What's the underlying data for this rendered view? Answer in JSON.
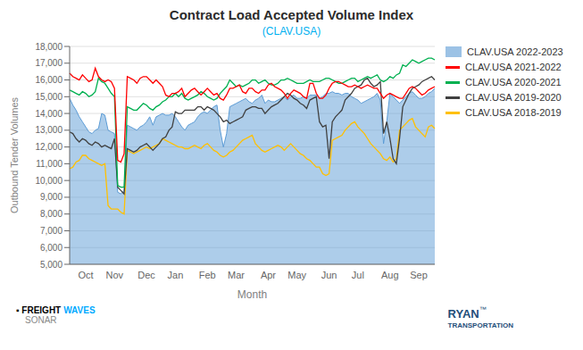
{
  "chart_data": {
    "type": "line",
    "title": "Contract Load Accepted Volume Index",
    "subtitle": "(CLAV.USA)",
    "xlabel": "Month",
    "ylabel": "Outbound Tender Volumes",
    "ylim": [
      5000,
      18000
    ],
    "yticks": [
      {
        "value": 5000,
        "label": "5,000"
      },
      {
        "value": 6000,
        "label": "6,000"
      },
      {
        "value": 7000,
        "label": "7,000"
      },
      {
        "value": 8000,
        "label": "8,000"
      },
      {
        "value": 9000,
        "label": "9,000"
      },
      {
        "value": 10000,
        "label": "10,000"
      },
      {
        "value": 11000,
        "label": "11,000"
      },
      {
        "value": 12000,
        "label": "12,000"
      },
      {
        "value": 13000,
        "label": "13,000"
      },
      {
        "value": 14000,
        "label": "14,000"
      },
      {
        "value": 15000,
        "label": "15,000"
      },
      {
        "value": 16000,
        "label": "16,000"
      },
      {
        "value": 17000,
        "label": "17,000"
      },
      {
        "value": 18000,
        "label": "18,000"
      }
    ],
    "grid": true,
    "legend": "right",
    "annotations": [
      "▪ FREIGHT",
      "WAVES",
      "SONAR",
      "RYAN",
      "™",
      "TRANSPORTATION"
    ],
    "categories": [
      null,
      null,
      null,
      null,
      null,
      "Oct",
      null,
      null,
      null,
      null,
      null,
      null,
      null,
      null,
      "Nov",
      null,
      null,
      null,
      null,
      null,
      null,
      null,
      null,
      null,
      "Dec",
      null,
      null,
      null,
      null,
      null,
      null,
      null,
      null,
      "Jan",
      null,
      null,
      null,
      null,
      null,
      null,
      null,
      null,
      null,
      "Feb",
      null,
      null,
      null,
      null,
      null,
      null,
      null,
      null,
      "Mar",
      null,
      null,
      null,
      null,
      null,
      null,
      null,
      null,
      null,
      "Apr",
      null,
      null,
      null,
      null,
      null,
      null,
      null,
      null,
      "May",
      null,
      null,
      null,
      null,
      null,
      null,
      null,
      null,
      null,
      "Jun",
      null,
      null,
      null,
      null,
      null,
      null,
      null,
      null,
      "Jul",
      null,
      null,
      null,
      null,
      null,
      null,
      null,
      null,
      null,
      "Aug",
      null,
      null,
      null,
      null,
      null,
      null,
      null,
      null,
      "Sep",
      null,
      null,
      null,
      null,
      null
    ],
    "series": [
      {
        "name": "CLAV.USA 2022-2023",
        "type": "area",
        "color": "#5b9bd5",
        "values": [
          14900,
          14500,
          14200,
          13800,
          13500,
          13200,
          12900,
          12800,
          13000,
          13100,
          14000,
          13900,
          13000,
          12900,
          12800,
          9300,
          9200,
          9400,
          13300,
          13200,
          13100,
          13000,
          13200,
          13300,
          13500,
          13800,
          13300,
          13800,
          13900,
          14000,
          13900,
          13900,
          14000,
          13800,
          13500,
          13200,
          13000,
          13300,
          13400,
          13500,
          13800,
          14000,
          14100,
          14000,
          14200,
          14400,
          14500,
          13000,
          12000,
          12800,
          14400,
          14500,
          14600,
          14700,
          14800,
          14900,
          14700,
          14600,
          14800,
          14900,
          15100,
          14600,
          14800,
          14700,
          14700,
          14800,
          14900,
          15000,
          14800,
          15000,
          15100,
          14900,
          14900,
          15000,
          14900,
          15100,
          15100,
          15100,
          14900,
          15000,
          15200,
          15200,
          15300,
          15200,
          15200,
          15100,
          15200,
          15200,
          15000,
          14900,
          14800,
          14600,
          14700,
          14800,
          14900,
          15000,
          15200,
          14800,
          12200,
          13500,
          15200,
          15000,
          14800,
          14600,
          14800,
          15000,
          15200,
          15300,
          15100,
          14900,
          14900,
          15000,
          15200,
          15300,
          15500
        ]
      },
      {
        "name": "CLAV.USA 2021-2022",
        "type": "line",
        "color": "#ff0000",
        "values": [
          16400,
          16200,
          16100,
          16000,
          16300,
          16100,
          15900,
          16000,
          16700,
          16200,
          16000,
          15900,
          16000,
          15900,
          15500,
          11200,
          11100,
          11600,
          16200,
          16100,
          16000,
          15800,
          16100,
          16200,
          16200,
          16000,
          15800,
          16000,
          15800,
          15600,
          15100,
          15000,
          15200,
          15200,
          15300,
          15500,
          15000,
          15200,
          15400,
          15500,
          15300,
          15100,
          15300,
          15500,
          15300,
          15100,
          15200,
          14900,
          14800,
          15100,
          15500,
          15500,
          15600,
          15700,
          15300,
          15200,
          15500,
          15500,
          15300,
          15200,
          15400,
          15400,
          15700,
          15800,
          15600,
          15500,
          15400,
          15200,
          14900,
          15200,
          15400,
          15300,
          15200,
          15000,
          14900,
          15800,
          15800,
          15200,
          14900,
          14900,
          15100,
          15500,
          15800,
          15900,
          15900,
          15800,
          15700,
          15600,
          15600,
          15700,
          15600,
          15500,
          15600,
          15700,
          15600,
          15500,
          15500,
          15200,
          14900,
          15100,
          15200,
          15100,
          15000,
          14900,
          14900,
          15200,
          15500,
          15600,
          15500,
          15300,
          15100,
          15200,
          15400,
          15500,
          15600
        ]
      },
      {
        "name": "CLAV.USA 2020-2021",
        "type": "line",
        "color": "#00b050",
        "values": [
          15400,
          15300,
          15200,
          15100,
          15300,
          15200,
          15000,
          15100,
          15300,
          16100,
          15900,
          15800,
          15500,
          15200,
          15000,
          9700,
          9600,
          9600,
          14400,
          14300,
          14200,
          14200,
          14400,
          14600,
          14500,
          14300,
          14200,
          14400,
          14500,
          14700,
          14800,
          15000,
          15000,
          15200,
          15000,
          15200,
          14900,
          14800,
          14900,
          15000,
          15100,
          15300,
          15200,
          15000,
          14900,
          14800,
          14900,
          15200,
          15400,
          15600,
          16000,
          15800,
          15600,
          15700,
          15600,
          15700,
          15800,
          16000,
          16000,
          15800,
          15900,
          16000,
          15800,
          15700,
          15700,
          15800,
          16000,
          16000,
          16100,
          16000,
          15900,
          15800,
          15800,
          15800,
          15900,
          16000,
          15900,
          15900,
          15900,
          16000,
          16100,
          16100,
          16000,
          15900,
          15800,
          15800,
          15900,
          16000,
          16100,
          16100,
          15900,
          16000,
          16100,
          16200,
          16100,
          16200,
          16300,
          16000,
          15900,
          16000,
          16200,
          16100,
          16300,
          16400,
          16900,
          16800,
          17000,
          17200,
          17100,
          17000,
          17100,
          17200,
          17300,
          17300,
          17200
        ]
      },
      {
        "name": "CLAV.USA 2019-2020",
        "type": "line",
        "color": "#404040",
        "values": [
          12900,
          12800,
          12500,
          12300,
          12500,
          12400,
          12200,
          12100,
          12300,
          12200,
          12000,
          12100,
          12000,
          11900,
          12500,
          9600,
          9400,
          9200,
          11900,
          11800,
          11700,
          11800,
          12000,
          12100,
          12200,
          12000,
          11800,
          12000,
          12200,
          12500,
          12600,
          13000,
          13200,
          14100,
          14000,
          14000,
          14200,
          14200,
          14200,
          14200,
          14400,
          14400,
          14200,
          14400,
          14300,
          14200,
          14000,
          13800,
          13500,
          13600,
          13400,
          13500,
          13600,
          13700,
          13800,
          14200,
          14300,
          14400,
          14400,
          14300,
          14300,
          14000,
          14200,
          14400,
          14500,
          14600,
          14800,
          15000,
          15200,
          15100,
          14900,
          14800,
          14600,
          14500,
          14300,
          14800,
          14900,
          15000,
          13500,
          13200,
          13300,
          11300,
          13500,
          13800,
          14000,
          14200,
          14800,
          15000,
          15200,
          15500,
          15600,
          15700,
          16000,
          16100,
          15800,
          15600,
          15700,
          15900,
          12800,
          13500,
          12500,
          11300,
          11000,
          12500,
          14400,
          14800,
          15200,
          15500,
          15600,
          15700,
          15900,
          16000,
          16100,
          16200,
          16000
        ]
      },
      {
        "name": "CLAV.USA 2018-2019",
        "type": "line",
        "color": "#ffc000",
        "values": [
          10700,
          10800,
          11100,
          11200,
          11500,
          11500,
          11300,
          11200,
          11100,
          11000,
          10900,
          11000,
          8500,
          8300,
          8300,
          8300,
          8100,
          8000,
          11800,
          11700,
          11600,
          11700,
          11800,
          11900,
          12000,
          11900,
          12000,
          12100,
          12200,
          12500,
          12400,
          12300,
          12200,
          12100,
          12000,
          12000,
          11900,
          11900,
          12000,
          12100,
          12000,
          11900,
          12100,
          12200,
          12000,
          11800,
          11700,
          11500,
          11400,
          11500,
          11700,
          11800,
          12000,
          12200,
          12400,
          12500,
          12600,
          12700,
          12200,
          12000,
          11800,
          11700,
          11800,
          11900,
          12000,
          12100,
          12000,
          11800,
          12000,
          12200,
          12000,
          11800,
          11600,
          11500,
          11300,
          11200,
          11000,
          10800,
          10800,
          10400,
          10300,
          10400,
          12400,
          12500,
          12600,
          12700,
          13000,
          13200,
          13400,
          13500,
          13200,
          13000,
          12800,
          12500,
          12200,
          12000,
          11800,
          11600,
          11300,
          11200,
          11400,
          11100,
          11300,
          13000,
          13200,
          13400,
          13600,
          13700,
          13200,
          13000,
          12800,
          12600,
          13200,
          13300,
          13100
        ]
      }
    ]
  }
}
